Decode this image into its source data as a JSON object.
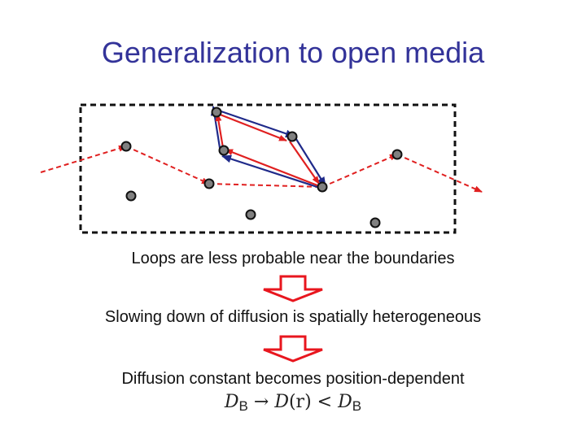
{
  "title": "Generalization to open media",
  "statements": {
    "loops": "Loops are less probable near the boundaries",
    "slowing": "Slowing down of diffusion is spatially heterogeneous",
    "diffusion": "Diffusion constant becomes position-dependent"
  },
  "formula": {
    "d_symbol": "D",
    "sub_b": "B",
    "arrow": "→",
    "d_of_r": "D",
    "r": "(r)",
    "less_than": "<"
  },
  "colors": {
    "title": "#333399",
    "red_path": "#e02020",
    "blue_loop": "#1f2a8a",
    "box_border": "#111111",
    "scatterer_fill": "#808080",
    "arrow_fill": "#e8161e"
  }
}
